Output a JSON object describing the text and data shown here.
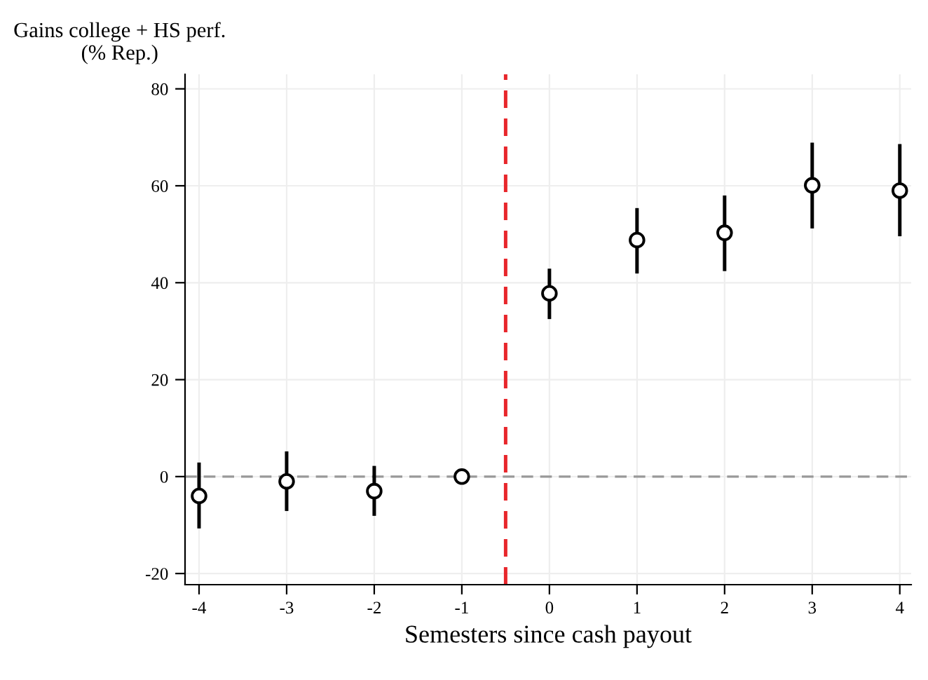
{
  "chart_data": {
    "type": "scatter",
    "xlabel": "Semesters since cash payout",
    "ylabel": "Gains college + HS perf.\n(% Rep.)",
    "x": [
      -4,
      -3,
      -2,
      -1,
      0,
      1,
      2,
      3,
      4
    ],
    "series": [
      {
        "color": "#000000",
        "values": [
          -4.0,
          -1.0,
          -3.0,
          0,
          37.8,
          48.8,
          50.3,
          60.1,
          59.0
        ],
        "errors": [
          [
            -10.7,
            2.9
          ],
          [
            -7.1,
            5.2
          ],
          [
            -8.1,
            2.2
          ],
          null,
          [
            32.5,
            42.9
          ],
          [
            41.9,
            55.4
          ],
          [
            42.4,
            58.0
          ],
          [
            51.2,
            68.9
          ],
          [
            49.6,
            68.6
          ]
        ]
      }
    ],
    "marker": "circle",
    "xlim": [
      -4.16,
      4.13
    ],
    "ylim": [
      -22.3,
      83
    ],
    "xticks": [
      -4,
      -3,
      -2,
      -1,
      0,
      1,
      2,
      3,
      4
    ],
    "yticks": [
      -20,
      0,
      20,
      40,
      60,
      80
    ],
    "grid": true,
    "ref_lines": [
      {
        "axis": "y",
        "value": 0,
        "color": "#999999",
        "line_style": "dashed"
      },
      {
        "axis": "x",
        "value": -0.5,
        "color": "#e8262b",
        "line_style": "dashed"
      }
    ]
  }
}
